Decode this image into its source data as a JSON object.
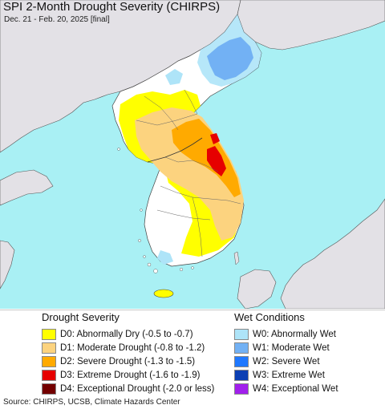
{
  "header": {
    "title": "SPI 2-Month Drought Severity (CHIRPS)",
    "subtitle": "Dec. 21 - Feb. 20, 2025 [final]"
  },
  "colors": {
    "sea": "#a9f0f4",
    "land_outside": "#e3e1e6",
    "land_normal": "#ffffff",
    "d0": "#ffff00",
    "d1": "#fcd37f",
    "d2": "#ffaa00",
    "d3": "#e60000",
    "d4": "#730000",
    "w0": "#aee4f8",
    "w1": "#72b1f4",
    "w2": "#1f78ff",
    "w3": "#0c3fb3",
    "w4": "#a11fec"
  },
  "legend_drought": {
    "title": "Drought Severity",
    "items": [
      {
        "label": "D0: Abnormally Dry (-0.5 to -0.7)",
        "color": "#ffff00"
      },
      {
        "label": "D1: Moderate Drought (-0.8 to -1.2)",
        "color": "#fcd37f"
      },
      {
        "label": "D2: Severe Drought (-1.3 to -1.5)",
        "color": "#ffaa00"
      },
      {
        "label": "D3: Extreme Drought (-1.6 to -1.9)",
        "color": "#e60000"
      },
      {
        "label": "D4: Exceptional Drought (-2.0 or less)",
        "color": "#730000"
      }
    ]
  },
  "legend_wet": {
    "title": "Wet Conditions",
    "items": [
      {
        "label": "W0: Abnormally Wet",
        "color": "#aee4f8"
      },
      {
        "label": "W1: Moderate Wet",
        "color": "#72b1f4"
      },
      {
        "label": "W2: Severe Wet",
        "color": "#1f78ff"
      },
      {
        "label": "W3: Extreme Wet",
        "color": "#0c3fb3"
      },
      {
        "label": "W4: Exceptional Wet",
        "color": "#a11fec"
      }
    ]
  },
  "footer": {
    "source": "Source: CHIRPS, UCSB, Climate Hazards Center"
  }
}
